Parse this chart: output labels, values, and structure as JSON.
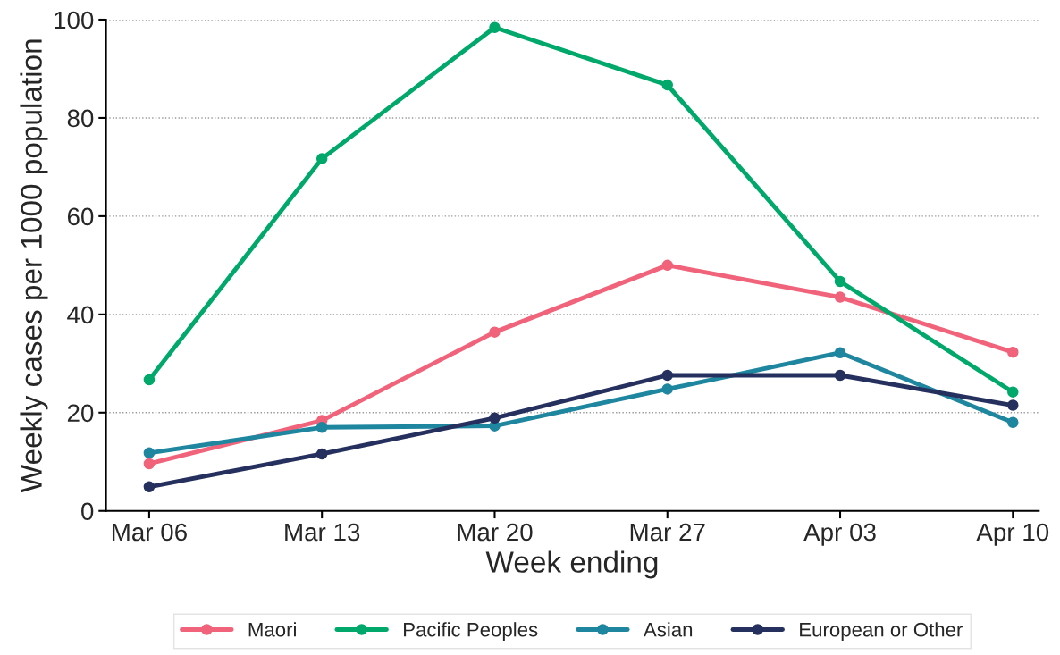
{
  "chart_data": {
    "type": "line",
    "xlabel": "Week ending",
    "ylabel": "Weekly cases per 1000 population",
    "categories": [
      "Mar 06",
      "Mar 13",
      "Mar 20",
      "Mar 27",
      "Apr 03",
      "Apr 10"
    ],
    "series": [
      {
        "name": "Maori",
        "color": "#f0637a",
        "values": [
          9.6,
          18.4,
          36.4,
          50.0,
          43.5,
          32.3
        ]
      },
      {
        "name": "Pacific Peoples",
        "color": "#00a86b",
        "values": [
          26.7,
          71.7,
          98.4,
          86.7,
          46.7,
          24.2
        ]
      },
      {
        "name": "Asian",
        "color": "#1f86a0",
        "values": [
          11.8,
          17.0,
          17.3,
          24.8,
          32.2,
          18.0
        ]
      },
      {
        "name": "European or Other",
        "color": "#25305e",
        "values": [
          4.9,
          11.6,
          18.9,
          27.6,
          27.6,
          21.5
        ]
      }
    ],
    "ylim": [
      0,
      100
    ],
    "yticks": [
      0,
      20,
      40,
      60,
      80,
      100
    ],
    "grid": "y",
    "legend": "bottom",
    "marker": "circle",
    "line_style": "solid"
  }
}
